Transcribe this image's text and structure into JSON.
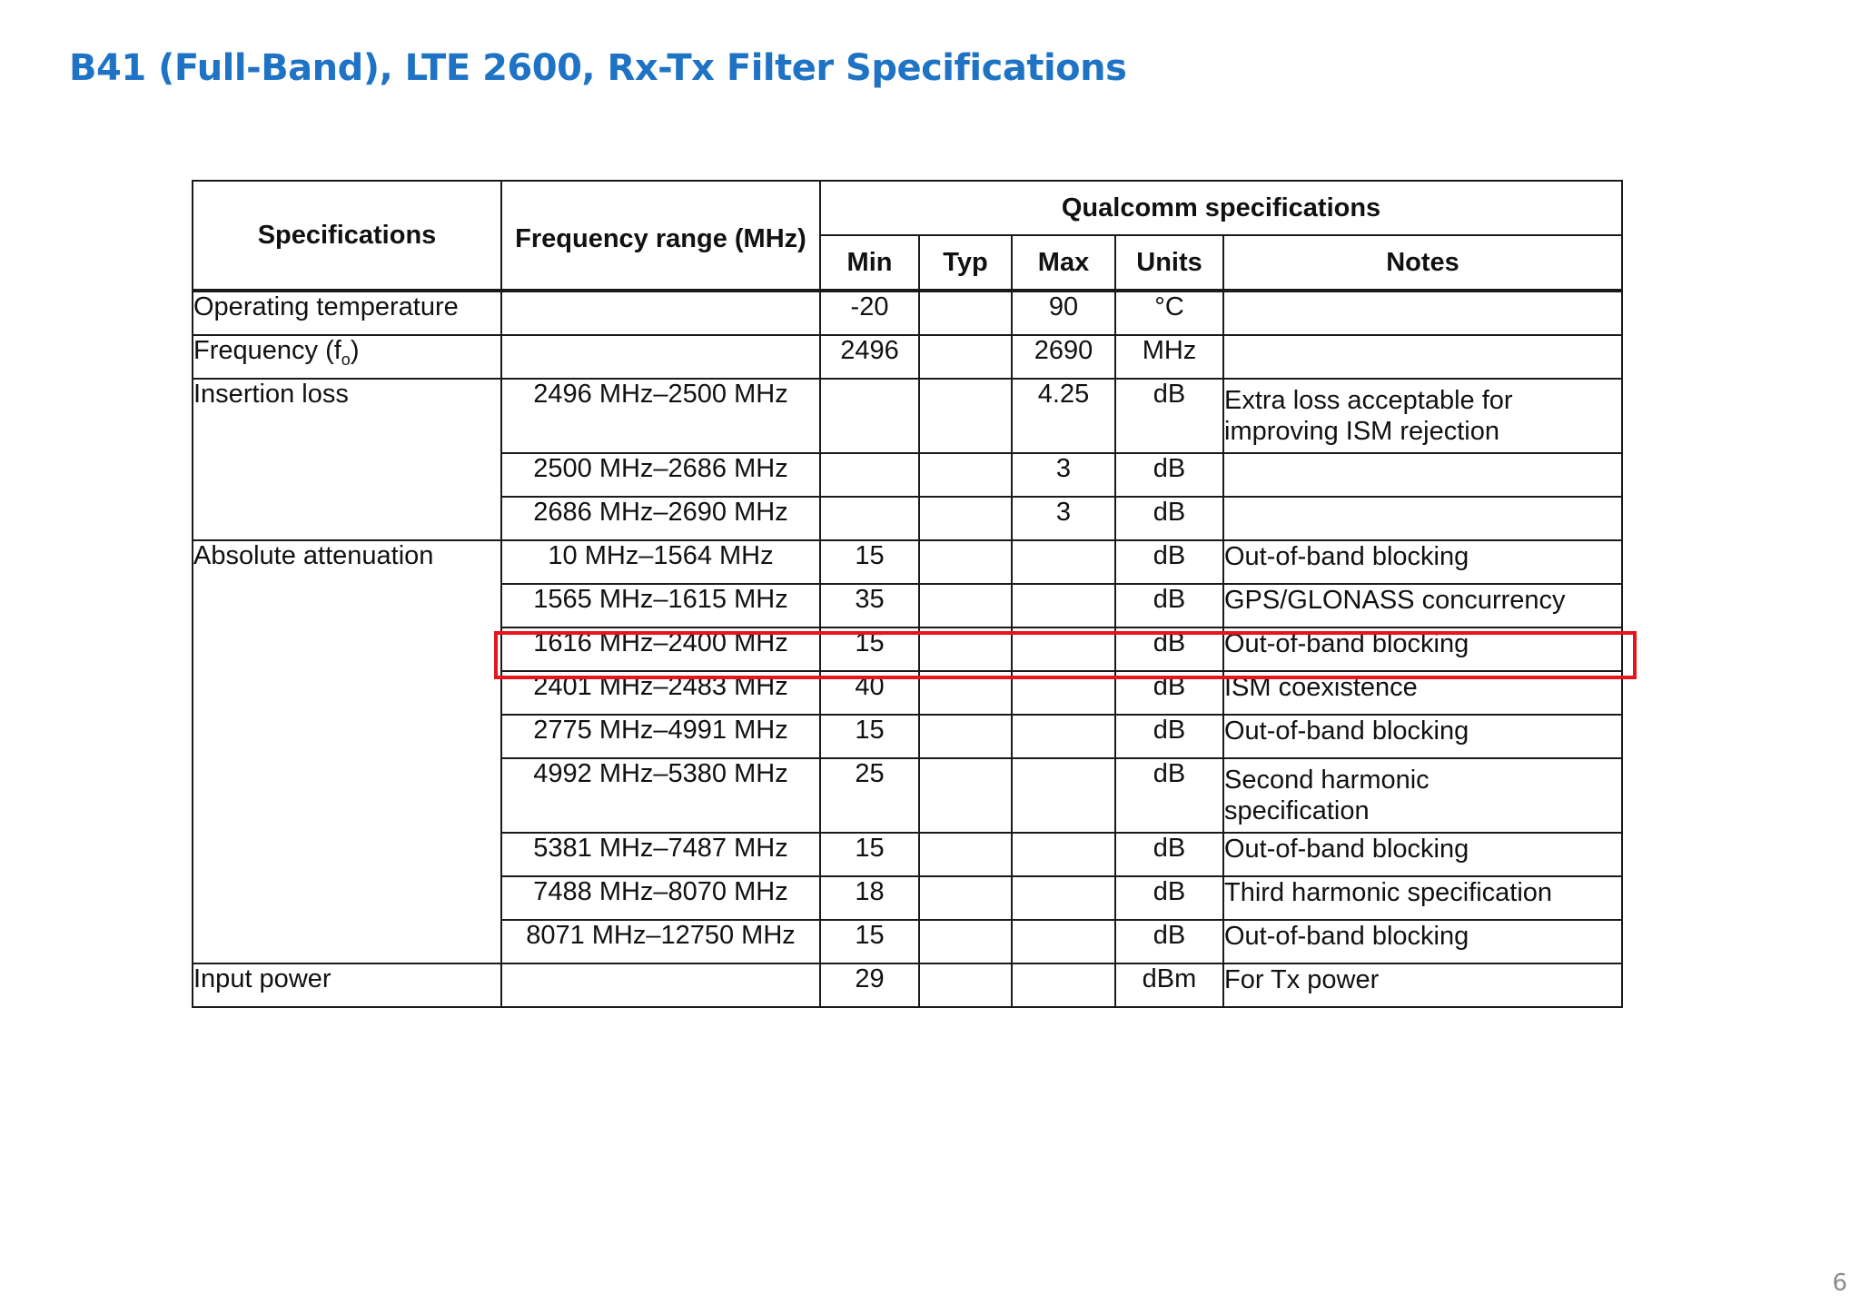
{
  "title": "B41 (Full-Band), LTE 2600, Rx-Tx Filter Specifications",
  "page_number": "6",
  "table": {
    "headers": {
      "specifications": "Specifications",
      "frequency_range": "Frequency range (MHz)",
      "qualcomm": "Qualcomm specifications",
      "min": "Min",
      "typ": "Typ",
      "max": "Max",
      "units": "Units",
      "notes": "Notes"
    },
    "rows": {
      "operating_temperature": {
        "spec": "Operating temperature",
        "freq": "",
        "min": "-20",
        "typ": "",
        "max": "90",
        "units": "°C",
        "notes": ""
      },
      "frequency": {
        "spec": "Frequency (f",
        "sub": "o",
        "spec_end": ")",
        "freq": "",
        "min": "2496",
        "typ": "",
        "max": "2690",
        "units": "MHz",
        "notes": ""
      },
      "insertion_loss": {
        "spec": "Insertion loss",
        "rows": [
          {
            "freq": "2496 MHz–2500 MHz",
            "min": "",
            "typ": "",
            "max": "4.25",
            "units": "dB",
            "notes": "Extra loss acceptable for improving ISM rejection"
          },
          {
            "freq": "2500 MHz–2686 MHz",
            "min": "",
            "typ": "",
            "max": "3",
            "units": "dB",
            "notes": ""
          },
          {
            "freq": "2686 MHz–2690 MHz",
            "min": "",
            "typ": "",
            "max": "3",
            "units": "dB",
            "notes": ""
          }
        ]
      },
      "absolute_attenuation": {
        "spec": "Absolute attenuation",
        "rows": [
          {
            "freq": "10 MHz–1564 MHz",
            "min": "15",
            "typ": "",
            "max": "",
            "units": "dB",
            "notes": "Out-of-band blocking"
          },
          {
            "freq": "1565 MHz–1615 MHz",
            "min": "35",
            "typ": "",
            "max": "",
            "units": "dB",
            "notes": "GPS/GLONASS concurrency"
          },
          {
            "freq": "1616 MHz–2400 MHz",
            "min": "15",
            "typ": "",
            "max": "",
            "units": "dB",
            "notes": "Out-of-band blocking"
          },
          {
            "freq": "2401 MHz–2483 MHz",
            "min": "40",
            "typ": "",
            "max": "",
            "units": "dB",
            "notes": "ISM coexistence"
          },
          {
            "freq": "2775 MHz–4991 MHz",
            "min": "15",
            "typ": "",
            "max": "",
            "units": "dB",
            "notes": "Out-of-band blocking"
          },
          {
            "freq": "4992 MHz–5380 MHz",
            "min": "25",
            "typ": "",
            "max": "",
            "units": "dB",
            "notes": "Second harmonic specification"
          },
          {
            "freq": "5381 MHz–7487 MHz",
            "min": "15",
            "typ": "",
            "max": "",
            "units": "dB",
            "notes": "Out-of-band blocking"
          },
          {
            "freq": "7488 MHz–8070 MHz",
            "min": "18",
            "typ": "",
            "max": "",
            "units": "dB",
            "notes": "Third harmonic specification"
          },
          {
            "freq": "8071 MHz–12750 MHz",
            "min": "15",
            "typ": "",
            "max": "",
            "units": "dB",
            "notes": "Out-of-band blocking"
          }
        ]
      },
      "input_power": {
        "spec": "Input power",
        "freq": "",
        "min": "29",
        "typ": "",
        "max": "",
        "units": "dBm",
        "notes": "For Tx power"
      }
    }
  },
  "colors": {
    "title": "#1f73c4",
    "highlight": "#e8141c"
  }
}
